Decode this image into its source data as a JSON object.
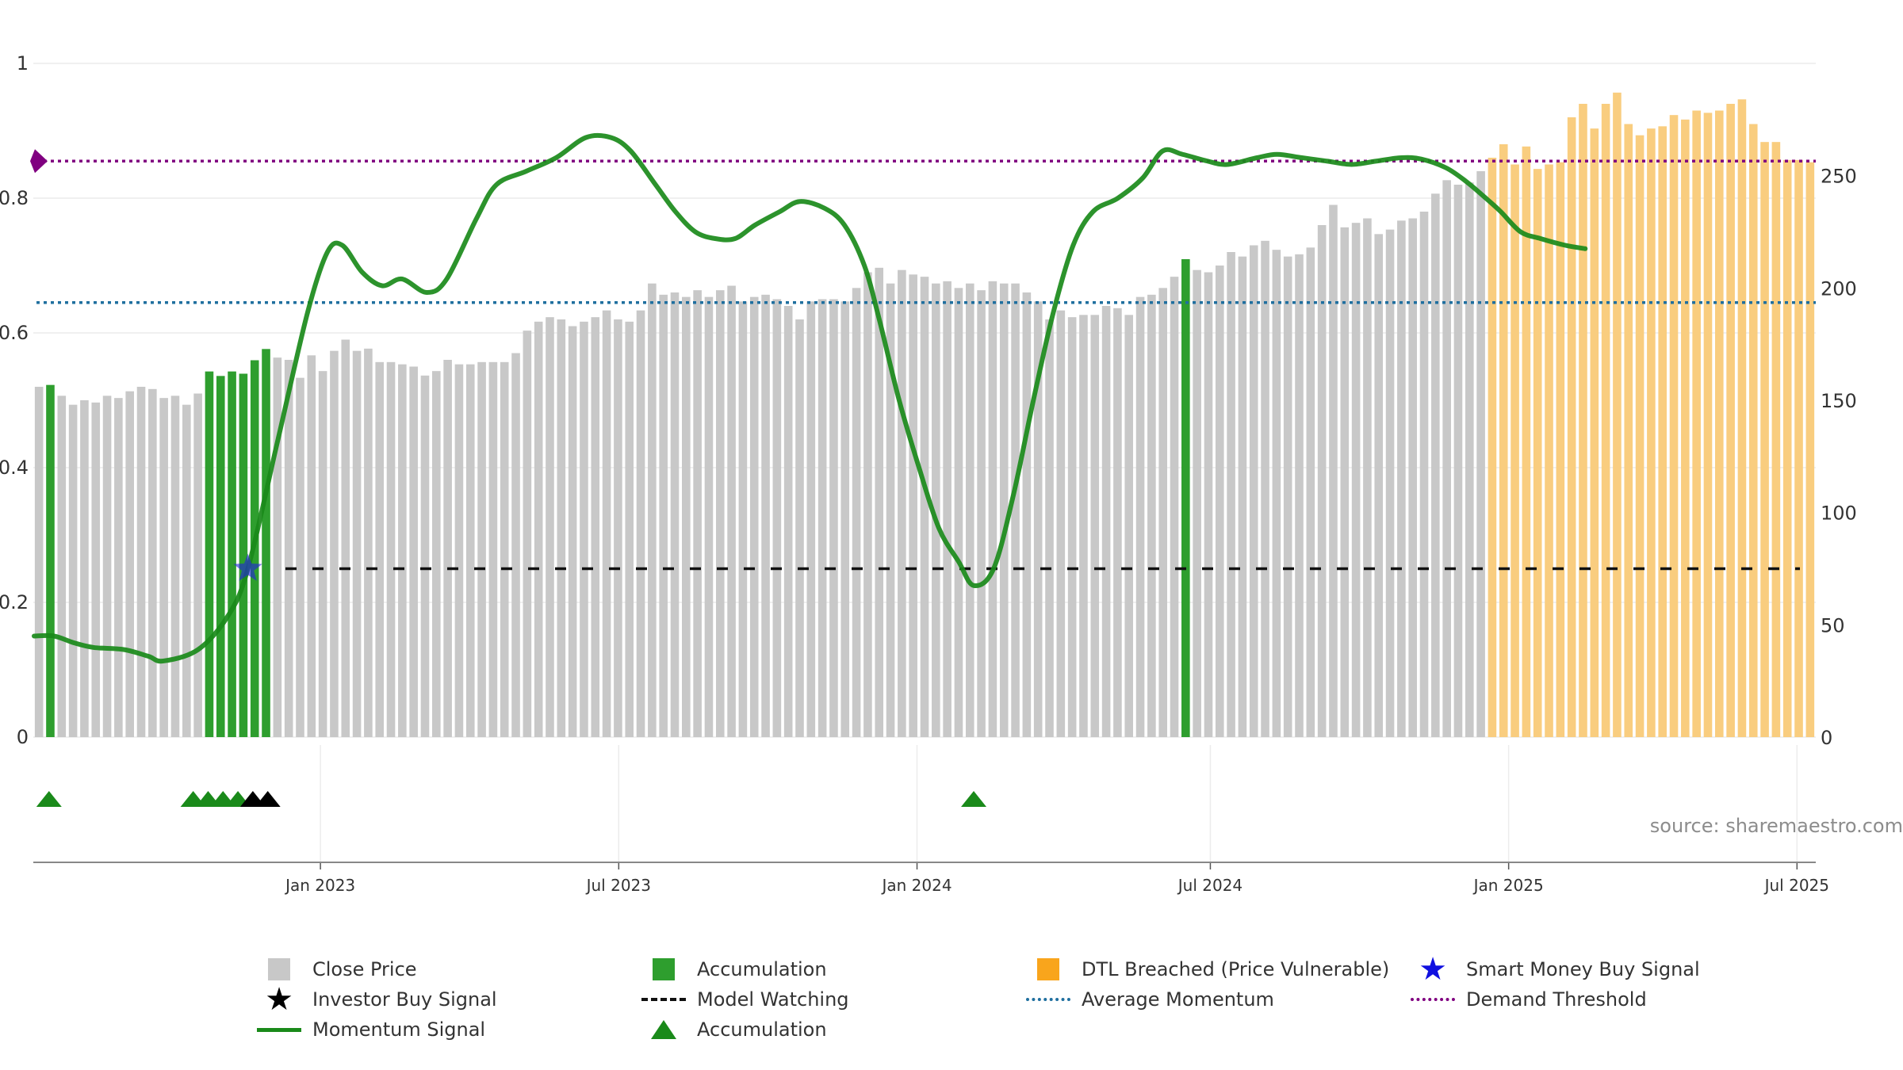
{
  "chart_data": {
    "type": "bar",
    "source_text": "source: sharemaestro.com",
    "left_axis": {
      "range": [
        0,
        1
      ],
      "tick_labels": [
        "0",
        "0.2",
        "0.4",
        "0.6",
        "0.8",
        "1"
      ]
    },
    "right_axis": {
      "range": [
        0,
        300
      ],
      "tick_labels": [
        "0",
        "50",
        "100",
        "150",
        "200",
        "250"
      ]
    },
    "x_axis": {
      "tick_labels": [
        "Jan 2023",
        "Jul 2023",
        "Jan 2024",
        "Jul 2024",
        "Jan 2025",
        "Jul 2025"
      ]
    },
    "series": [
      {
        "name": "Close Price",
        "type": "bar",
        "color": "#c8c8c8",
        "axis": "right",
        "values": [
          156,
          154,
          152,
          148,
          150,
          149,
          152,
          151,
          154,
          156,
          155,
          151,
          152,
          148,
          153,
          160,
          158,
          160,
          159,
          165,
          170,
          169,
          168,
          160,
          170,
          163,
          172,
          177,
          172,
          173,
          167,
          167,
          166,
          165,
          161,
          163,
          168,
          166,
          166,
          167,
          167,
          167,
          171,
          181,
          185,
          187,
          186,
          183,
          185,
          187,
          190,
          186,
          185,
          190,
          202,
          197,
          198,
          196,
          199,
          196,
          199,
          201,
          194,
          196,
          197,
          195,
          192,
          186,
          194,
          195,
          195,
          194,
          200,
          207,
          209,
          202,
          208,
          206,
          205,
          202,
          203,
          200,
          202,
          199,
          203,
          202,
          202,
          198,
          194,
          186,
          190,
          187,
          188,
          188,
          192,
          191,
          188,
          196,
          197,
          200,
          205,
          210,
          208,
          207,
          210,
          216,
          214,
          219,
          221,
          217,
          214,
          215,
          218,
          228,
          237,
          227,
          229,
          231,
          224,
          226,
          230,
          231,
          234,
          242,
          248,
          246,
          247,
          252
        ],
        "accumulation_indices": [
          1,
          15,
          16,
          17,
          18,
          19,
          20,
          101
        ]
      },
      {
        "name": "DTL Breached (Price Vulnerable)",
        "type": "bar",
        "color": "#f9cd7f",
        "axis": "right",
        "values": [
          258,
          264,
          255,
          263,
          253,
          255,
          256,
          276,
          282,
          271,
          282,
          287,
          273,
          268,
          271,
          272,
          277,
          275,
          279,
          278,
          279,
          282,
          284,
          273,
          265,
          265,
          257,
          257,
          256
        ]
      },
      {
        "name": "Momentum Signal",
        "type": "line",
        "color": "#1a8a1a",
        "axis": "left",
        "points": [
          [
            0,
            0.15
          ],
          [
            0.4,
            0.15
          ],
          [
            0.8,
            0.14
          ],
          [
            1.2,
            0.133
          ],
          [
            1.8,
            0.13
          ],
          [
            2.3,
            0.12
          ],
          [
            2.6,
            0.113
          ],
          [
            3.3,
            0.13
          ],
          [
            3.9,
            0.18
          ],
          [
            4.3,
            0.25
          ],
          [
            4.9,
            0.44
          ],
          [
            5.5,
            0.63
          ],
          [
            5.9,
            0.72
          ],
          [
            6.2,
            0.73
          ],
          [
            6.6,
            0.69
          ],
          [
            7.0,
            0.67
          ],
          [
            7.4,
            0.68
          ],
          [
            7.9,
            0.66
          ],
          [
            8.3,
            0.68
          ],
          [
            8.9,
            0.77
          ],
          [
            9.3,
            0.82
          ],
          [
            9.9,
            0.84
          ],
          [
            10.5,
            0.86
          ],
          [
            11.1,
            0.89
          ],
          [
            11.6,
            0.89
          ],
          [
            12.0,
            0.87
          ],
          [
            12.5,
            0.82
          ],
          [
            12.9,
            0.78
          ],
          [
            13.3,
            0.75
          ],
          [
            13.7,
            0.74
          ],
          [
            14.1,
            0.74
          ],
          [
            14.5,
            0.76
          ],
          [
            15.0,
            0.78
          ],
          [
            15.4,
            0.795
          ],
          [
            15.9,
            0.785
          ],
          [
            16.3,
            0.76
          ],
          [
            16.7,
            0.7
          ],
          [
            17.0,
            0.62
          ],
          [
            17.4,
            0.5
          ],
          [
            17.8,
            0.4
          ],
          [
            18.2,
            0.31
          ],
          [
            18.6,
            0.26
          ],
          [
            18.9,
            0.225
          ],
          [
            19.3,
            0.25
          ],
          [
            19.7,
            0.36
          ],
          [
            20.1,
            0.5
          ],
          [
            20.5,
            0.63
          ],
          [
            20.9,
            0.73
          ],
          [
            21.3,
            0.78
          ],
          [
            21.8,
            0.8
          ],
          [
            22.3,
            0.83
          ],
          [
            22.7,
            0.87
          ],
          [
            23.1,
            0.865
          ],
          [
            23.6,
            0.855
          ],
          [
            24.0,
            0.85
          ],
          [
            24.6,
            0.86
          ],
          [
            25.0,
            0.865
          ],
          [
            25.5,
            0.86
          ],
          [
            26.0,
            0.855
          ],
          [
            26.5,
            0.85
          ],
          [
            27.0,
            0.855
          ],
          [
            27.5,
            0.86
          ],
          [
            27.9,
            0.858
          ],
          [
            28.4,
            0.845
          ],
          [
            28.8,
            0.825
          ],
          [
            29.2,
            0.8
          ],
          [
            29.5,
            0.78
          ],
          [
            29.9,
            0.75
          ],
          [
            30.3,
            0.74
          ],
          [
            30.8,
            0.73
          ],
          [
            31.2,
            0.725
          ]
        ]
      },
      {
        "name": "Model Watching",
        "type": "line",
        "color": "#111111",
        "axis": "left",
        "value": 0.25
      },
      {
        "name": "Average Momentum",
        "type": "line",
        "color": "#1f6f9f",
        "axis": "left",
        "value": 0.645
      },
      {
        "name": "Demand Threshold",
        "type": "line",
        "color": "#800080",
        "axis": "left",
        "value": 0.855
      },
      {
        "name": "Smart Money Buy Signal",
        "type": "marker",
        "color": "#2222dd",
        "points": [
          {
            "month": 4.3,
            "value": 0.25
          }
        ]
      },
      {
        "name": "Accumulation",
        "type": "marker",
        "color": "#1a8a1a",
        "months": [
          0.3,
          3.2,
          3.5,
          3.8,
          4.1,
          18.9
        ]
      },
      {
        "name": "Investor Buy Signal",
        "type": "marker",
        "color": "#000000",
        "months": [
          4.4,
          4.7
        ]
      }
    ]
  },
  "legend": {
    "close_price": "Close Price",
    "accumulation_bar": "Accumulation",
    "dtl_breached": "DTL Breached (Price Vulnerable)",
    "smart_money": "Smart Money Buy Signal",
    "investor_buy": "Investor Buy Signal",
    "model_watching": "Model Watching",
    "average_momentum": "Average Momentum",
    "demand_threshold": "Demand Threshold",
    "momentum_signal": "Momentum Signal",
    "accumulation_marker": "Accumulation"
  },
  "colors": {
    "close": "#c8c8c8",
    "accumulation": "#2e9e2e",
    "dtl": "#f9cd7f",
    "momentum": "#1a8a1a",
    "watching": "#111111",
    "average": "#1f6f9f",
    "threshold": "#800080",
    "smart_money": "#2222dd"
  }
}
